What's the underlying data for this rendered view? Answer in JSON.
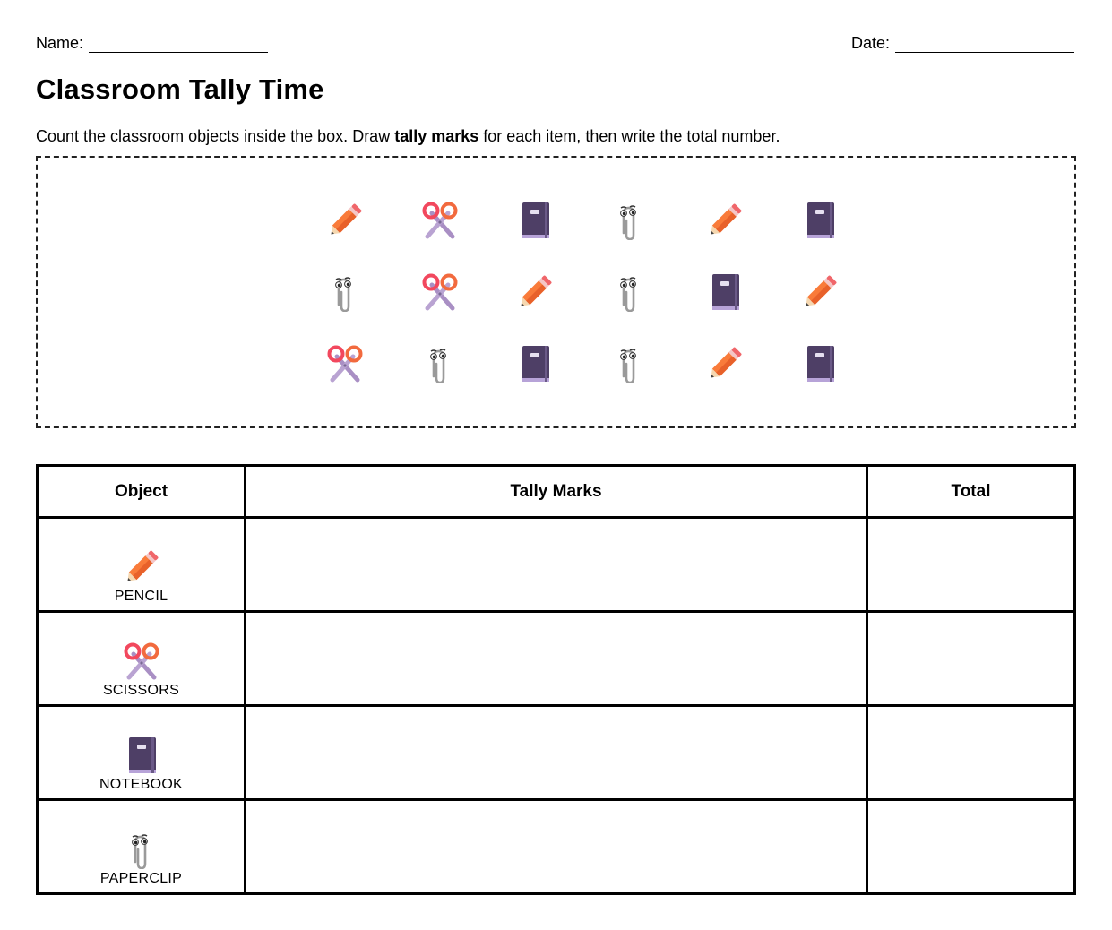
{
  "header": {
    "name_label": "Name:",
    "date_label": "Date:"
  },
  "title": "Classroom Tally Time",
  "instructions": {
    "before": "Count the classroom objects inside the box. Draw ",
    "bold": "tally marks",
    "after": " for each item, then write the total number."
  },
  "colors": {
    "pencil_body": "#f97b3a",
    "pencil_eraser": "#f0666a",
    "scissors_handle": "#f2485e",
    "scissors_blade": "#a98fc4",
    "notebook": "#4e3f66",
    "paperclip": "#9a9a9a"
  },
  "object_grid": [
    [
      "pencil",
      "scissors",
      "notebook",
      "paperclip",
      "pencil",
      "notebook"
    ],
    [
      "paperclip",
      "scissors",
      "pencil",
      "paperclip",
      "notebook",
      "pencil"
    ],
    [
      "scissors",
      "paperclip",
      "notebook",
      "paperclip",
      "pencil",
      "notebook"
    ]
  ],
  "table": {
    "headers": {
      "object": "Object",
      "tally": "Tally Marks",
      "total": "Total"
    },
    "rows": [
      {
        "icon": "pencil-icon",
        "label": "PENCIL"
      },
      {
        "icon": "scissors-icon",
        "label": "SCISSORS"
      },
      {
        "icon": "notebook-icon",
        "label": "NOTEBOOK"
      },
      {
        "icon": "paperclip-icon",
        "label": "PAPERCLIP"
      }
    ]
  }
}
